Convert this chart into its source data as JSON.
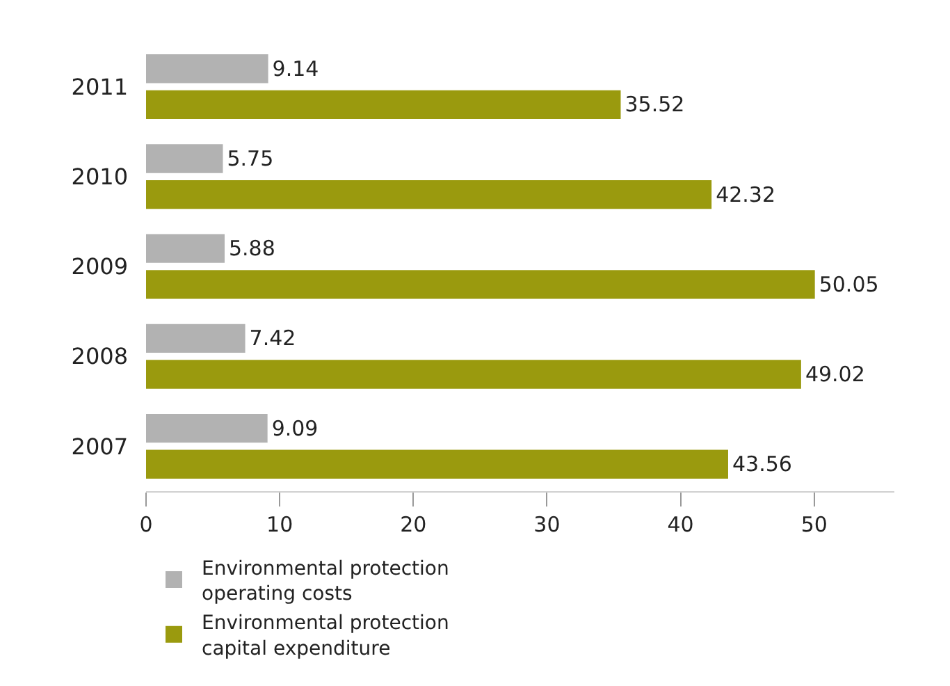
{
  "chart_data": {
    "type": "bar",
    "orientation": "horizontal",
    "categories": [
      "2011",
      "2010",
      "2009",
      "2008",
      "2007"
    ],
    "series": [
      {
        "name": "Environmental protection\noperating costs",
        "color": "#b2b2b2",
        "values": [
          9.14,
          5.75,
          5.88,
          7.42,
          9.09
        ]
      },
      {
        "name": "Environmental protection\ncapital expenditure",
        "color": "#9a9a0e",
        "values": [
          35.52,
          42.32,
          50.05,
          49.02,
          43.56
        ]
      }
    ],
    "xlim": [
      0,
      56
    ],
    "xticks": [
      0,
      10,
      20,
      30,
      40,
      50
    ],
    "data_labels": true,
    "legend": "bottom"
  }
}
